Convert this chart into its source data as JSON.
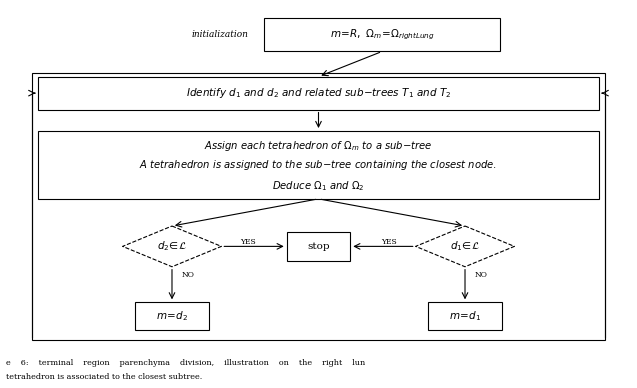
{
  "fig_width": 6.37,
  "fig_height": 3.88,
  "dpi": 100,
  "bg_color": "#ffffff",
  "text_color": "#000000",
  "arrow_color": "#000000",
  "init_text": "initialization",
  "box1_math": "$m=R,\\ \\Omega_m=\\ \\Omega_{rightLung}$",
  "box2_math": "$\\mathit{Identify\\ d_1\\ and\\ d_2\\ and\\ related\\ sub{-}trees\\ T_1\\ and\\ T_2}$",
  "box3_line1": "$\\mathit{Assign\\ each\\ tetrahedron\\ of\\ \\Omega_m\\ to\\ a\\ sub{-}tree}$",
  "box3_line2": "$\\mathit{A\\ tetrahedron\\ is\\ assigned\\ to\\ the\\ sub{-}tree\\ containing\\ the\\ closest\\ node.}$",
  "box3_line3": "$\\mathit{Deduce\\ \\Omega_1\\ and\\ \\Omega_2}$",
  "dl_math": "$d_2\\!\\in\\!\\mathcal{L}$",
  "dr_math": "$d_1\\!\\in\\!\\mathcal{L}$",
  "stop_text": "stop",
  "bl_math": "$m=\\ d_2$",
  "br_math": "$m=\\ d_1$",
  "yes_text": "YES",
  "no_text": "NO",
  "caption1": "e    6:    terminal    region    parenchyma    division,    illustration    on    the    right    lun",
  "caption2": "tetrahedron is associated to the closest subtree."
}
